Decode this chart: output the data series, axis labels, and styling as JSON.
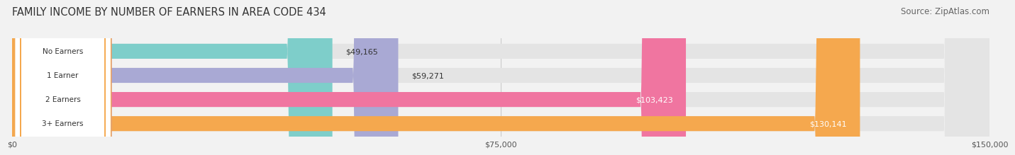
{
  "title": "FAMILY INCOME BY NUMBER OF EARNERS IN AREA CODE 434",
  "source": "Source: ZipAtlas.com",
  "categories": [
    "No Earners",
    "1 Earner",
    "2 Earners",
    "3+ Earners"
  ],
  "values": [
    49165,
    59271,
    103423,
    130141
  ],
  "bar_colors": [
    "#7ececa",
    "#a9a9d4",
    "#f075a0",
    "#f5a84e"
  ],
  "label_colors": [
    "#7ececa",
    "#a9a9d4",
    "#f075a0",
    "#f5a84e"
  ],
  "value_labels": [
    "$49,165",
    "$59,271",
    "$103,423",
    "$130,141"
  ],
  "xmax": 150000,
  "xticks": [
    0,
    75000,
    150000
  ],
  "xticklabels": [
    "$0",
    "$75,000",
    "$150,000"
  ],
  "background_color": "#f2f2f2",
  "bar_background": "#e4e4e4",
  "title_fontsize": 10.5,
  "source_fontsize": 8.5
}
